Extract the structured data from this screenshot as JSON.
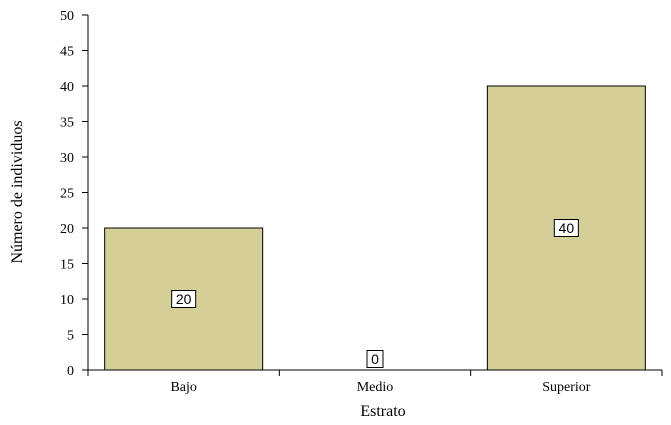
{
  "chart_data": {
    "type": "bar",
    "categories": [
      "Bajo",
      "Medio",
      "Superior"
    ],
    "values": [
      20,
      0,
      40
    ],
    "data_labels": [
      "20",
      "0",
      "40"
    ],
    "title": "",
    "xlabel": "Estrato",
    "ylabel": "Número de individuos",
    "ylim": [
      0,
      50
    ],
    "yticks": [
      0,
      5,
      10,
      15,
      20,
      25,
      30,
      35,
      40,
      45,
      50
    ],
    "grid": false,
    "legend": "none",
    "bar_color": "#d3cf97",
    "bar_edge_color": "#000000"
  }
}
